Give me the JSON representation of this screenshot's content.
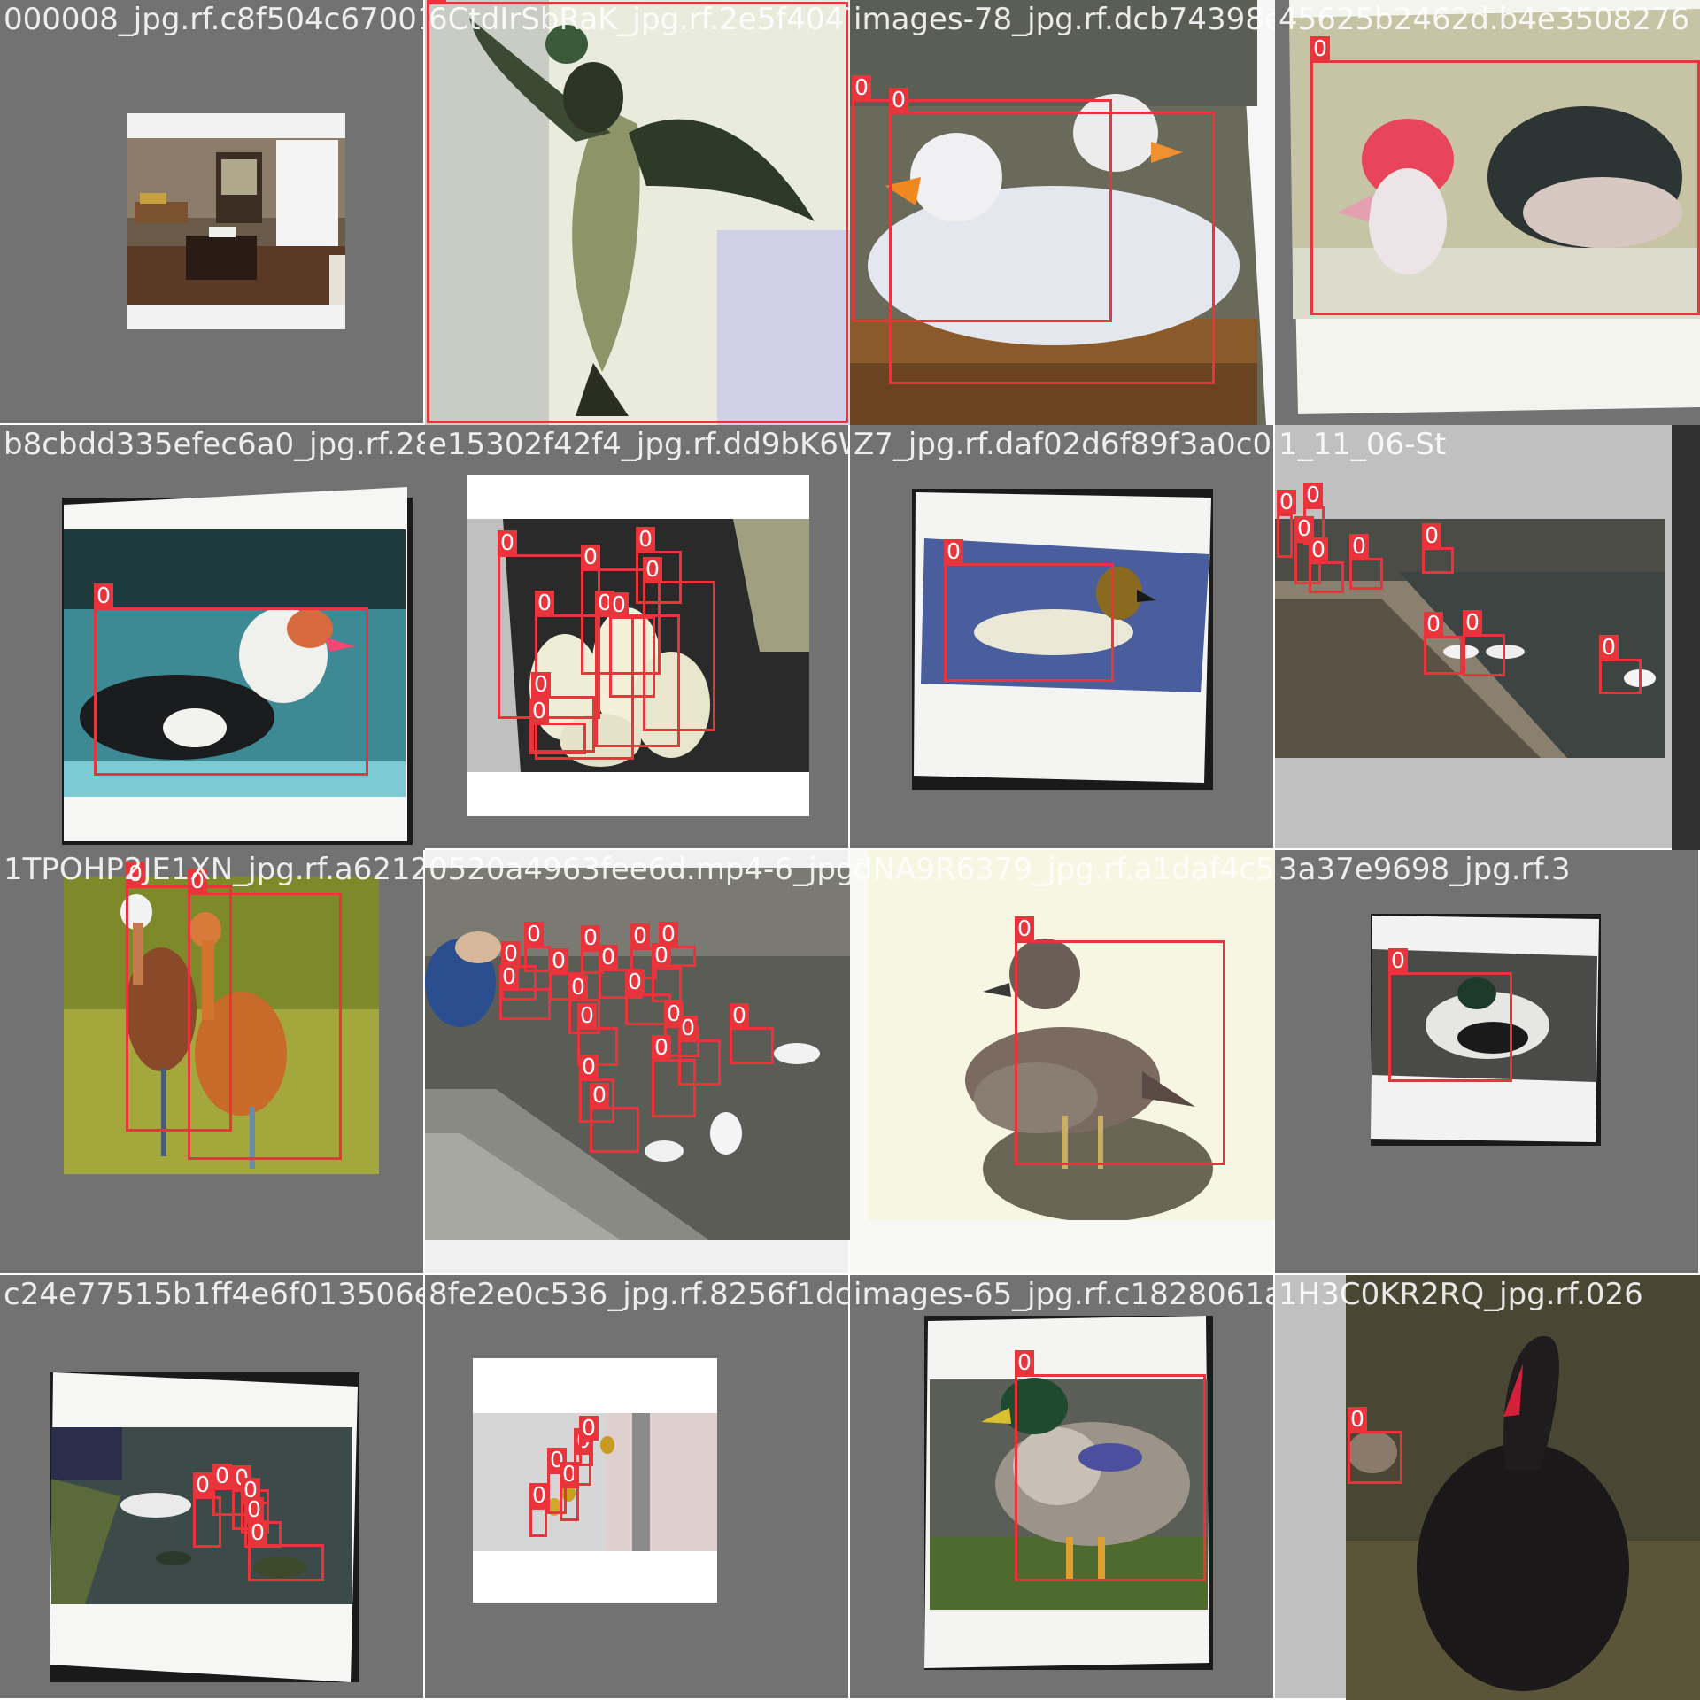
{
  "mosaic": {
    "tiles": [
      {
        "filename": "000008_jpg.rf.c8f504c6700163d9061691fa",
        "scene": "armchair-reading-corner",
        "boxes": []
      },
      {
        "filename": "6CtdIrSbRaK_jpg.rf.2e5f40478576",
        "scene": "wood-duck-in-flight",
        "boxes": [
          {
            "cls": "0"
          }
        ]
      },
      {
        "filename": "images-78_jpg.rf.dcb74398e89dea",
        "scene": "white-ducks-on-nest",
        "boxes": [
          {
            "cls": "0"
          },
          {
            "cls": "0"
          }
        ]
      },
      {
        "filename": "45625b2462d.b4e3508276",
        "scene": "muscovy-duck-swimming",
        "boxes": [
          {
            "cls": "0"
          }
        ]
      },
      {
        "filename": "b8cbdd335efec6a0_jpg.rf.2888682",
        "scene": "king-eider-on-water",
        "boxes": [
          {
            "cls": "0"
          }
        ]
      },
      {
        "filename": "e15302f42f4_jpg.rf.dd9bK6W33EL9A",
        "scene": "ducklings-in-crate",
        "boxes": [
          {
            "cls": "0"
          },
          {
            "cls": "0"
          },
          {
            "cls": "0"
          },
          {
            "cls": "0"
          },
          {
            "cls": "0"
          },
          {
            "cls": "0"
          },
          {
            "cls": "0"
          },
          {
            "cls": "0"
          },
          {
            "cls": "0"
          }
        ]
      },
      {
        "filename": "Z7_jpg.rf.daf02d6f89f3a0c06",
        "scene": "canvasback-swimming",
        "boxes": [
          {
            "cls": "0"
          }
        ]
      },
      {
        "filename": "1_11_06-St",
        "scene": "ducks-on-river-bank",
        "boxes": [
          {
            "cls": "0"
          },
          {
            "cls": "0"
          },
          {
            "cls": "0"
          },
          {
            "cls": "0"
          },
          {
            "cls": "0"
          },
          {
            "cls": "0"
          },
          {
            "cls": "0"
          },
          {
            "cls": "0"
          },
          {
            "cls": "0"
          }
        ]
      },
      {
        "filename": "1TPOHP2JE1XN_jpg.rf.a6212",
        "scene": "whistling-ducks-wading",
        "boxes": [
          {
            "cls": "0"
          },
          {
            "cls": "0"
          }
        ]
      },
      {
        "filename": "0520a4963fee6d.mp4-6_jpg.rf",
        "scene": "child-feeding-ducks",
        "boxes": [
          {
            "cls": "0"
          },
          {
            "cls": "0"
          },
          {
            "cls": "0"
          },
          {
            "cls": "0"
          },
          {
            "cls": "0"
          },
          {
            "cls": "0"
          },
          {
            "cls": "0"
          },
          {
            "cls": "0"
          },
          {
            "cls": "0"
          },
          {
            "cls": "0"
          },
          {
            "cls": "0"
          },
          {
            "cls": "0"
          },
          {
            "cls": "0"
          },
          {
            "cls": "0"
          },
          {
            "cls": "0"
          },
          {
            "cls": "0"
          },
          {
            "cls": "0"
          },
          {
            "cls": "0"
          }
        ]
      },
      {
        "filename": "dNA9R6379_jpg.rf.a1daf4c5e787",
        "scene": "female-wood-duck-on-rock",
        "boxes": [
          {
            "cls": "0"
          }
        ]
      },
      {
        "filename": "3a37e9698_jpg.rf.3",
        "scene": "mallard-resting-in-water",
        "boxes": [
          {
            "cls": "0"
          }
        ]
      },
      {
        "filename": "c24e77515b1ff4e6f013506e8f3926",
        "scene": "people-at-duck-pond",
        "boxes": [
          {
            "cls": "0"
          },
          {
            "cls": "0"
          },
          {
            "cls": "0"
          },
          {
            "cls": "0"
          },
          {
            "cls": "0"
          },
          {
            "cls": "0"
          }
        ]
      },
      {
        "filename": "8fe2e0c536_jpg.rf.8256f1dc",
        "scene": "ducklings-on-tiles",
        "boxes": [
          {
            "cls": "0"
          },
          {
            "cls": "0"
          },
          {
            "cls": "0"
          },
          {
            "cls": "0"
          },
          {
            "cls": "0"
          }
        ]
      },
      {
        "filename": "images-65_jpg.rf.c1828061a",
        "scene": "mallard-drake-standing",
        "boxes": [
          {
            "cls": "0"
          }
        ]
      },
      {
        "filename": "1H3C0KR2RQ_jpg.rf.026",
        "scene": "black-swan-with-cygnet",
        "boxes": [
          {
            "cls": "0"
          }
        ]
      }
    ]
  }
}
